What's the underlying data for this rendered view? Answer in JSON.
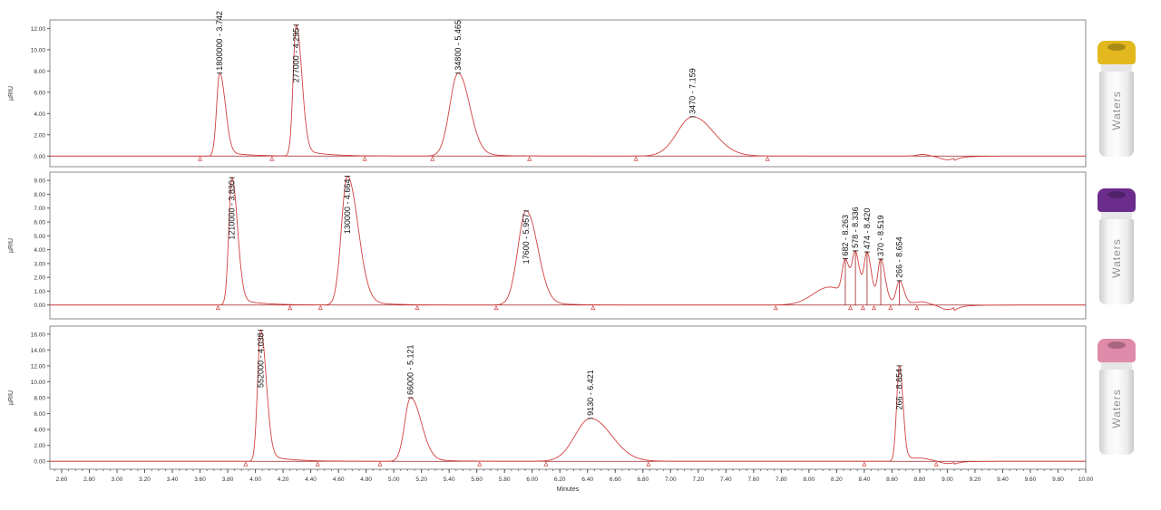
{
  "chart_data": [
    {
      "type": "line",
      "ylabel": "µRIU",
      "ylim": [
        -1,
        12.8
      ],
      "yticks": [
        "0.00",
        "2.00",
        "4.00",
        "6.00",
        "8.00",
        "10.00",
        "12.00"
      ],
      "peaks": [
        {
          "rt": 3.742,
          "height": 7.8,
          "label": "1800000 - 3.742"
        },
        {
          "rt": 4.295,
          "height": 12.3,
          "label": "277000 - 4.295"
        },
        {
          "rt": 5.465,
          "height": 7.8,
          "label": "34800 - 5.465"
        },
        {
          "rt": 7.159,
          "height": 3.7,
          "label": "3470 - 7.159"
        }
      ],
      "integration_marks": [
        3.6,
        4.12,
        4.79,
        5.28,
        5.98,
        6.75,
        7.7
      ]
    },
    {
      "type": "line",
      "ylabel": "µRIU",
      "ylim": [
        -1,
        9.6
      ],
      "yticks": [
        "0.00",
        "1.00",
        "2.00",
        "3.00",
        "4.00",
        "5.00",
        "6.00",
        "7.00",
        "8.00",
        "9.00"
      ],
      "peaks": [
        {
          "rt": 3.83,
          "height": 9.2,
          "label": "1210000 - 3.830"
        },
        {
          "rt": 4.664,
          "height": 9.3,
          "label": "130000 - 4.664"
        },
        {
          "rt": 5.957,
          "height": 6.8,
          "label": "17600 - 5.957"
        },
        {
          "rt": 8.263,
          "height": 2.5,
          "label": "682 - 8.263"
        },
        {
          "rt": 8.336,
          "height": 3.3,
          "label": "578 - 8.336"
        },
        {
          "rt": 8.42,
          "height": 3.5,
          "label": "474 - 8.420"
        },
        {
          "rt": 8.519,
          "height": 3.1,
          "label": "370 - 8.519"
        },
        {
          "rt": 8.654,
          "height": 1.6,
          "label": "266 - 8.654"
        }
      ],
      "integration_marks": [
        3.73,
        4.25,
        4.47,
        5.17,
        5.74,
        6.44,
        7.76,
        8.3,
        8.39,
        8.47,
        8.59,
        8.78
      ]
    },
    {
      "type": "line",
      "ylabel": "µRIU",
      "xlabel": "Minutes",
      "ylim": [
        -1,
        17
      ],
      "yticks": [
        "0.00",
        "2.00",
        "4.00",
        "6.00",
        "8.00",
        "10.00",
        "12.00",
        "14.00",
        "16.00"
      ],
      "xlim": [
        2.515,
        10.0
      ],
      "xticks": [
        "2.60",
        "2.80",
        "3.00",
        "3.20",
        "3.40",
        "3.60",
        "3.80",
        "4.00",
        "4.20",
        "4.40",
        "4.60",
        "4.80",
        "5.00",
        "5.20",
        "5.40",
        "5.60",
        "5.80",
        "6.00",
        "6.20",
        "6.40",
        "6.60",
        "6.80",
        "7.00",
        "7.20",
        "7.40",
        "7.60",
        "7.80",
        "8.00",
        "8.20",
        "8.40",
        "8.60",
        "8.80",
        "9.00",
        "9.20",
        "9.40",
        "9.60",
        "9.80",
        "10.00"
      ],
      "peaks": [
        {
          "rt": 4.038,
          "height": 16.5,
          "label": "552000 - 4.038"
        },
        {
          "rt": 5.121,
          "height": 8.0,
          "label": "66000 - 5.121"
        },
        {
          "rt": 6.421,
          "height": 5.4,
          "label": "9130 - 6.421"
        },
        {
          "rt": 8.654,
          "height": 12.0,
          "label": "266 - 8.654"
        }
      ],
      "integration_marks": [
        3.93,
        4.45,
        4.9,
        5.62,
        6.1,
        6.84,
        8.4,
        8.92
      ]
    }
  ],
  "colors": {
    "trace": "#d04040",
    "baseline": "#a02020",
    "label": "#111111",
    "caps": [
      "#e2b81e",
      "#6b2c8c",
      "#e08aaa"
    ]
  },
  "vials": [
    {
      "cap": "yellow",
      "brand": "Waters"
    },
    {
      "cap": "purple",
      "brand": "Waters"
    },
    {
      "cap": "pink",
      "brand": "Waters"
    }
  ]
}
